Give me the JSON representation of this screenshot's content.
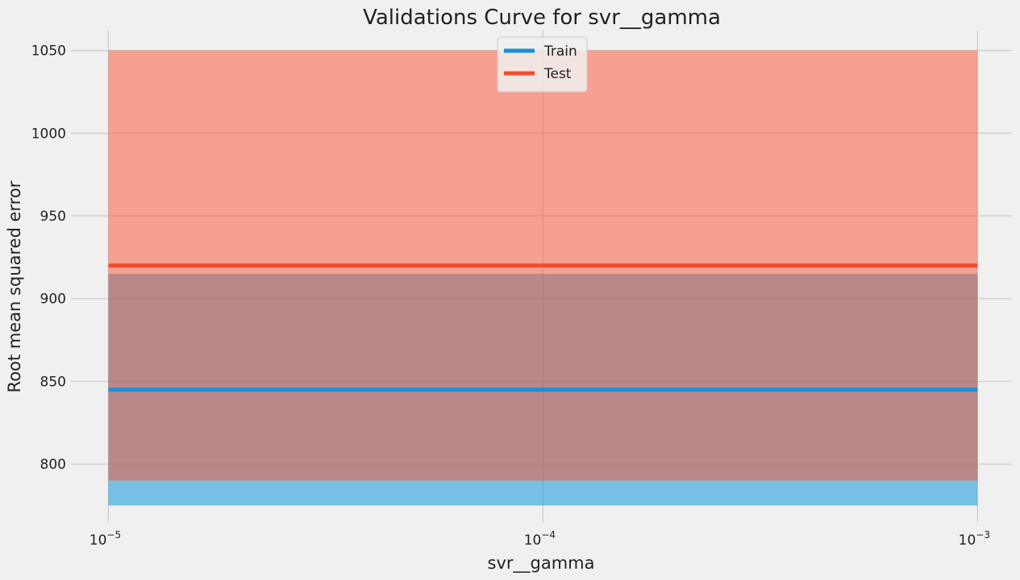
{
  "chart_data": {
    "type": "line",
    "title": "Validations Curve for svr__gamma",
    "xlabel": "svr__gamma",
    "ylabel": "Root mean squared error",
    "x_scale": "log",
    "x": [
      1e-05,
      0.0001,
      0.001
    ],
    "x_ticks": [
      {
        "value": 1e-05,
        "base": "10",
        "exp": "−5"
      },
      {
        "value": 0.0001,
        "base": "10",
        "exp": "−4"
      },
      {
        "value": 0.001,
        "base": "10",
        "exp": "−3"
      }
    ],
    "xlim": [
      8.2e-06,
      0.0012
    ],
    "y_ticks": [
      800,
      850,
      900,
      950,
      1000,
      1050
    ],
    "ylim": [
      765,
      1062
    ],
    "grid": true,
    "legend_position": "top-center",
    "series": [
      {
        "name": "Train",
        "values": [
          845,
          845,
          845
        ],
        "band_lower": [
          775,
          775,
          775
        ],
        "band_upper": [
          915,
          915,
          915
        ],
        "color": "#1a8fd4",
        "band_color": "#008fd5"
      },
      {
        "name": "Test",
        "values": [
          920,
          920,
          920
        ],
        "band_lower": [
          790,
          790,
          790
        ],
        "band_upper": [
          1050,
          1050,
          1050
        ],
        "color": "#f24c2e",
        "band_color": "#fc4f30"
      }
    ]
  }
}
